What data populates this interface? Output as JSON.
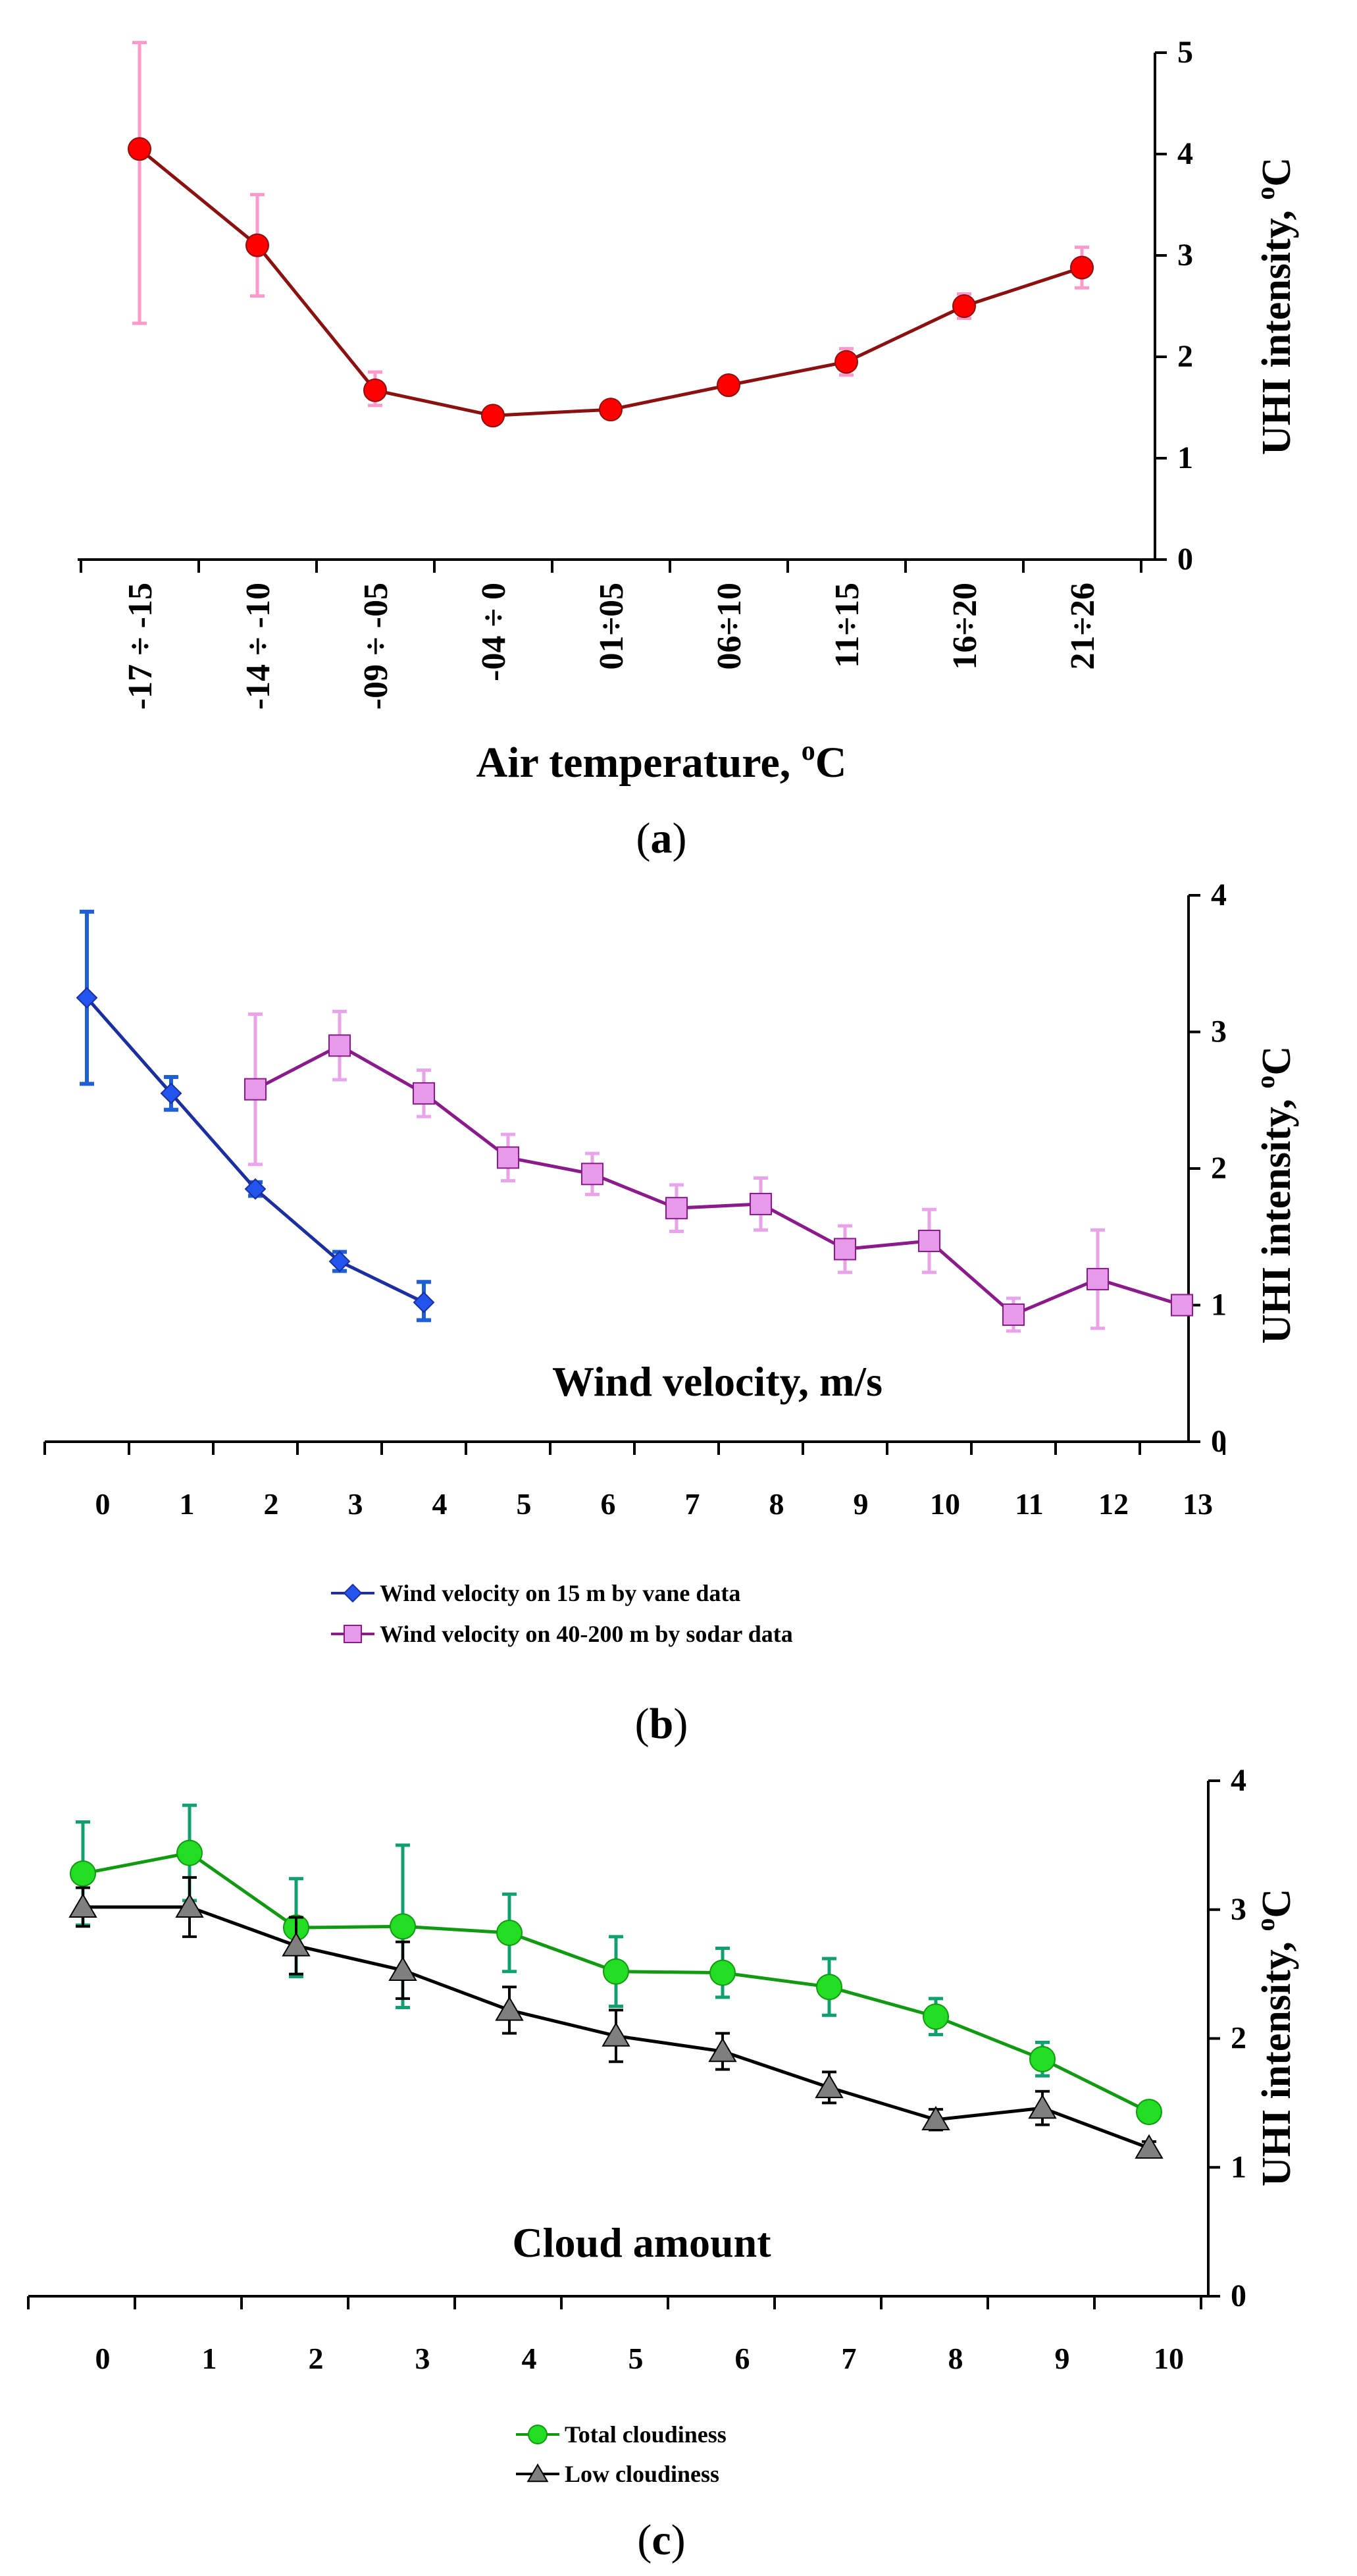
{
  "colors": {
    "axis": "#000000",
    "panel_a_line": "#8b1010",
    "panel_a_marker": "#ff0000",
    "panel_a_error": "#ff99cc",
    "panel_b_vane_line": "#1c2fa0",
    "panel_b_vane_marker": "#2255ee",
    "panel_b_vane_error": "#1f5fd6",
    "panel_b_sodar_line": "#8b1a8b",
    "panel_b_sodar_marker": "#e79ae9",
    "panel_b_sodar_error": "#e8a3ea",
    "panel_c_total_line": "#119a11",
    "panel_c_total_marker": "#22dd22",
    "panel_c_total_error": "#10a070",
    "panel_c_low_line": "#000000",
    "panel_c_low_marker": "#7f7f7f",
    "panel_c_low_error": "#000000"
  },
  "chart_data": [
    {
      "panel": "a",
      "panel_label_open": "(",
      "panel_label_letter": "a",
      "panel_label_close": ")",
      "type": "line",
      "xlabel": "Air temperature, ",
      "xlabel_super": "o",
      "xlabel_unit": "C",
      "ylabel": "UHI intensity, ",
      "ylabel_super": "o",
      "ylabel_unit": "C",
      "yaxis_side": "right",
      "ylim": [
        0,
        5
      ],
      "yticks": [
        "0",
        "1",
        "2",
        "3",
        "4",
        "5"
      ],
      "categories": [
        "-17 ÷ -15",
        "-14 ÷ -10",
        "-09 ÷ -05",
        "-04 ÷ 0",
        "01÷05",
        "06÷10",
        "11÷15",
        "16÷20",
        "21÷26"
      ],
      "series": [
        {
          "name": "UHI intensity",
          "marker": "circle",
          "values": [
            4.05,
            3.1,
            1.67,
            1.42,
            1.48,
            1.72,
            1.95,
            2.5,
            2.88
          ],
          "err_upper": [
            1.05,
            0.5,
            0.18,
            0.05,
            0.06,
            0.08,
            0.13,
            0.12,
            0.2
          ],
          "err_lower": [
            1.72,
            0.5,
            0.15,
            0.05,
            0.06,
            0.08,
            0.13,
            0.12,
            0.2
          ]
        }
      ],
      "legend": []
    },
    {
      "panel": "b",
      "panel_label_open": "(",
      "panel_label_letter": "b",
      "panel_label_close": ")",
      "type": "line",
      "xlabel": "Wind velocity, m/s",
      "ylabel": "UHI intensity, ",
      "ylabel_super": "o",
      "ylabel_unit": "C",
      "yaxis_side": "right",
      "ylim": [
        0,
        4
      ],
      "yticks": [
        "0",
        "1",
        "2",
        "3",
        "4"
      ],
      "categories": [
        "0",
        "1",
        "2",
        "3",
        "4",
        "5",
        "6",
        "7",
        "8",
        "9",
        "10",
        "11",
        "12",
        "13"
      ],
      "series": [
        {
          "name": "Wind velocity on 15 m by vane data",
          "marker": "diamond",
          "x": [
            0,
            1,
            2,
            3,
            4
          ],
          "values": [
            3.25,
            2.55,
            1.85,
            1.32,
            1.02
          ],
          "err_upper": [
            0.63,
            0.12,
            0.05,
            0.07,
            0.15
          ],
          "err_lower": [
            0.63,
            0.12,
            0.05,
            0.07,
            0.13
          ]
        },
        {
          "name": "Wind velocity on 40-200 m by sodar data",
          "marker": "square",
          "x": [
            2,
            3,
            4,
            5,
            6,
            7,
            8,
            9,
            10,
            11,
            12,
            13
          ],
          "values": [
            2.58,
            2.9,
            2.55,
            2.08,
            1.96,
            1.71,
            1.74,
            1.41,
            1.47,
            0.93,
            1.19,
            1.0
          ],
          "err_upper": [
            0.55,
            0.25,
            0.17,
            0.17,
            0.15,
            0.17,
            0.19,
            0.17,
            0.23,
            0.12,
            0.36,
            0
          ],
          "err_lower": [
            0.55,
            0.25,
            0.17,
            0.17,
            0.15,
            0.17,
            0.19,
            0.17,
            0.23,
            0.12,
            0.36,
            0
          ]
        }
      ],
      "legend": [
        "Wind velocity on 15 m by vane data",
        "Wind velocity on 40-200 m by sodar data"
      ]
    },
    {
      "panel": "c",
      "panel_label_open": "(",
      "panel_label_letter": "c",
      "panel_label_close": ")",
      "type": "line",
      "xlabel": "Cloud amount",
      "ylabel": "UHI intensity, ",
      "ylabel_super": "o",
      "ylabel_unit": "C",
      "yaxis_side": "right",
      "ylim": [
        0,
        4
      ],
      "yticks": [
        "0",
        "1",
        "2",
        "3",
        "4"
      ],
      "categories": [
        "0",
        "1",
        "2",
        "3",
        "4",
        "5",
        "6",
        "7",
        "8",
        "9",
        "10"
      ],
      "series": [
        {
          "name": "Total cloudiness",
          "marker": "circle",
          "values": [
            3.28,
            3.44,
            2.86,
            2.87,
            2.82,
            2.52,
            2.51,
            2.4,
            2.17,
            1.84,
            1.43
          ],
          "err_upper": [
            0.4,
            0.37,
            0.38,
            0.63,
            0.3,
            0.27,
            0.19,
            0.22,
            0.14,
            0.13,
            0
          ],
          "err_lower": [
            0.4,
            0.37,
            0.38,
            0.63,
            0.3,
            0.27,
            0.19,
            0.22,
            0.14,
            0.13,
            0
          ]
        },
        {
          "name": "Low cloudiness",
          "marker": "triangle",
          "values": [
            3.02,
            3.02,
            2.72,
            2.53,
            2.22,
            2.02,
            1.9,
            1.62,
            1.37,
            1.46,
            1.15
          ],
          "err_upper": [
            0.15,
            0.23,
            0.22,
            0.22,
            0.18,
            0.2,
            0.14,
            0.12,
            0.08,
            0.13,
            0.05
          ],
          "err_lower": [
            0.15,
            0.23,
            0.22,
            0.22,
            0.18,
            0.2,
            0.14,
            0.12,
            0.08,
            0.13,
            0.05
          ]
        }
      ],
      "legend": [
        "Total cloudiness",
        "Low cloudiness"
      ]
    }
  ]
}
